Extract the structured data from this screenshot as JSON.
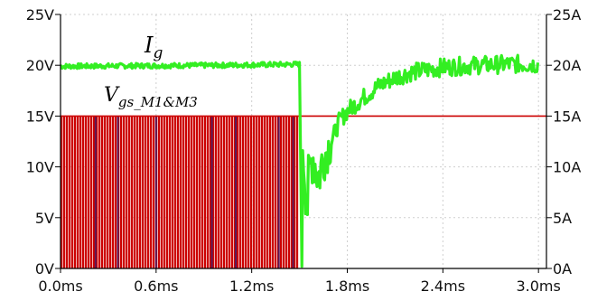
{
  "chart_data": {
    "type": "line",
    "title": "",
    "xlabel": "",
    "ylabel": "",
    "y2label": "",
    "grid": true,
    "xlim": [
      0.0,
      3.05
    ],
    "ylim": [
      0,
      25
    ],
    "y2lim": [
      0,
      25
    ],
    "x_ticks": [
      0.0,
      0.6,
      1.2,
      1.8,
      2.4,
      3.0
    ],
    "x_tick_labels": [
      "0.0ms",
      "0.6ms",
      "1.2ms",
      "1.8ms",
      "2.4ms",
      "3.0ms"
    ],
    "y_ticks": [
      0,
      5,
      10,
      15,
      20,
      25
    ],
    "y_tick_labels": [
      "0V",
      "5V",
      "10V",
      "15V",
      "20V",
      "25V"
    ],
    "y2_ticks": [
      0,
      5,
      10,
      15,
      20,
      25
    ],
    "y2_tick_labels": [
      "0A",
      "5A",
      "10A",
      "15A",
      "20A",
      "25A"
    ],
    "series": [
      {
        "name": "Ig",
        "label_main": "I",
        "label_sub": "g",
        "axis": "right",
        "color": "#33ee22",
        "x": [
          0.0,
          1.0,
          1.5,
          1.5,
          1.52,
          1.55,
          1.58,
          1.62,
          1.65,
          1.7,
          1.75,
          1.8,
          1.9,
          2.0,
          2.1,
          2.2,
          2.4,
          2.6,
          2.8,
          3.0
        ],
        "values": [
          19.9,
          20.0,
          20.1,
          0.1,
          13.0,
          6.5,
          11.5,
          9.0,
          11.0,
          12.5,
          14.5,
          15.5,
          16.8,
          18.0,
          18.8,
          19.3,
          19.8,
          20.0,
          20.1,
          20.1
        ]
      },
      {
        "name": "Vgs_M1&M3",
        "label_main": "V",
        "label_sub": "gs_M1&M3",
        "axis": "left",
        "color": "#cc0000",
        "x": [
          0.0,
          1.5,
          1.5,
          3.0
        ],
        "values": [
          15,
          15,
          15,
          15
        ],
        "pwm_until": 1.5,
        "pwm_high": 15,
        "pwm_low": 0
      }
    ]
  }
}
